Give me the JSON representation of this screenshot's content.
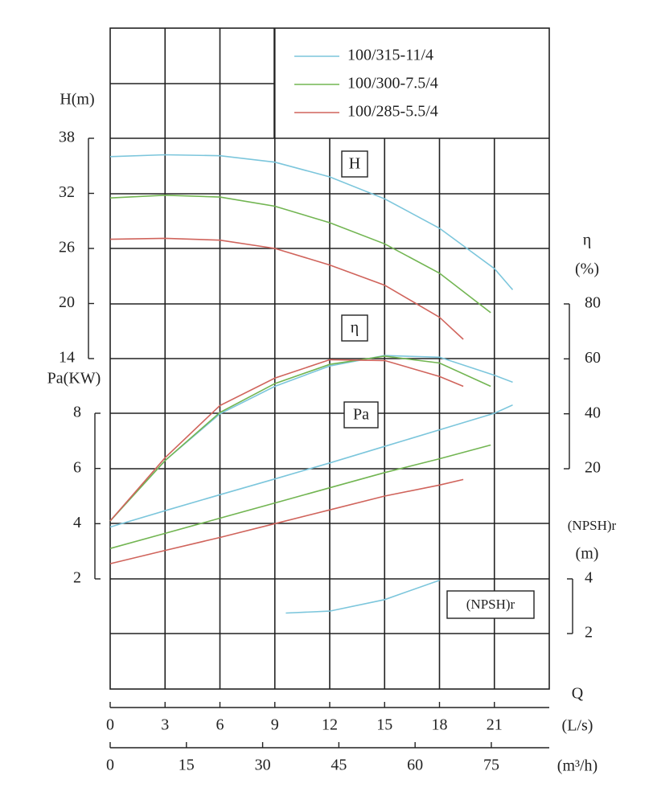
{
  "chart_data": {
    "type": "line",
    "x_label": "Q",
    "x_unit": "(L/s)",
    "xlim": [
      0,
      24
    ],
    "xticks": [
      0,
      3,
      6,
      9,
      12,
      15,
      18,
      21
    ],
    "x2_unit": "(m³/h)",
    "x2lim": [
      0,
      86.4
    ],
    "x2ticks": [
      0,
      15,
      30,
      45,
      60,
      75
    ],
    "axes": {
      "H": {
        "label": "H(m)",
        "lim": [
          14,
          38
        ],
        "ticks": [
          14,
          20,
          26,
          32,
          38
        ],
        "curve_label": "H"
      },
      "eta": {
        "label": "η",
        "unit": "(%)",
        "lim": [
          20,
          80
        ],
        "ticks": [
          20,
          40,
          60,
          80
        ],
        "curve_label": "η"
      },
      "Pa": {
        "label": "Pa(KW)",
        "lim": [
          2,
          8
        ],
        "ticks": [
          2,
          4,
          6,
          8
        ],
        "curve_label": "Pa"
      },
      "npsh": {
        "label": "(NPSH)r",
        "unit": "(m)",
        "lim": [
          2,
          4
        ],
        "ticks": [
          2,
          4
        ],
        "curve_label": "(NPSH)r"
      }
    },
    "series": [
      {
        "name": "100/315-11/4",
        "color": "#7cc6dc",
        "x": [
          0,
          3,
          6,
          9,
          12,
          15,
          18,
          21,
          22
        ],
        "H": [
          36.0,
          36.2,
          36.1,
          35.4,
          33.8,
          31.4,
          28.2,
          23.8,
          21.5
        ],
        "eta": [
          1,
          23,
          40,
          50,
          57.4,
          61.2,
          60.6,
          54,
          51.5
        ],
        "Pa": [
          3.88,
          4.47,
          5.05,
          5.62,
          6.2,
          6.8,
          7.4,
          8.0,
          8.3
        ]
      },
      {
        "name": "100/300-7.5/4",
        "color": "#72b552",
        "x": [
          0,
          3,
          6,
          9,
          12,
          15,
          18,
          20.8
        ],
        "H": [
          31.5,
          31.8,
          31.6,
          30.6,
          28.8,
          26.5,
          23.3,
          19.0
        ],
        "eta": [
          1,
          23,
          40.5,
          51,
          58,
          61,
          58.5,
          50
        ],
        "Pa": [
          3.1,
          3.65,
          4.2,
          4.75,
          5.3,
          5.85,
          6.35,
          6.85
        ]
      },
      {
        "name": "100/285-5.5/4",
        "color": "#d0645c",
        "x": [
          0,
          3,
          6,
          9,
          12,
          15,
          18,
          19.3
        ],
        "H": [
          27.0,
          27.1,
          26.9,
          26.0,
          24.2,
          22.0,
          18.5,
          16.1
        ],
        "eta": [
          1,
          24,
          43,
          53,
          59.7,
          59.4,
          53.6,
          50
        ],
        "Pa": [
          2.55,
          3.03,
          3.5,
          4.0,
          4.5,
          5.0,
          5.4,
          5.6
        ]
      }
    ],
    "npsh_curve": {
      "color": "#7cc6dc",
      "x": [
        9.6,
        12,
        15,
        18
      ],
      "values": [
        2.75,
        2.82,
        3.24,
        3.95
      ]
    }
  }
}
